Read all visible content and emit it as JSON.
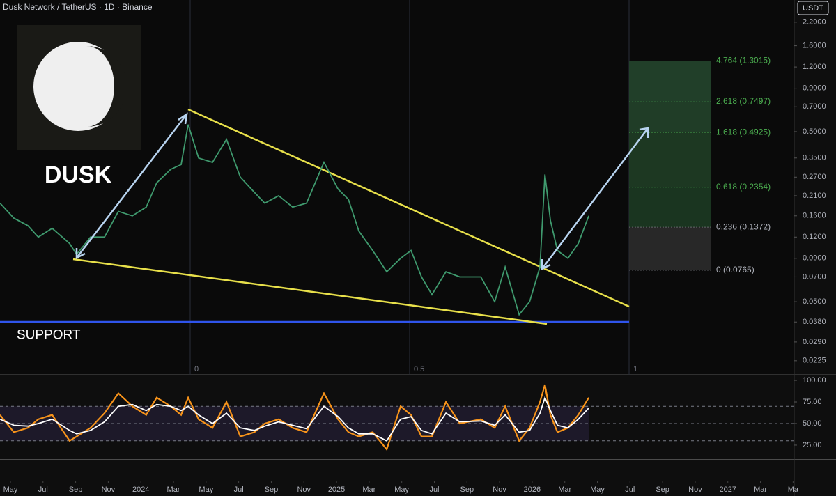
{
  "header": "Dusk Network / TetherUS · 1D · Binance",
  "currency": "USDT",
  "logo_text": "DUSK",
  "chart_data": [
    {
      "type": "line",
      "log_scale": true,
      "color": "#3f9a6e",
      "x": [
        -0.64,
        0.21,
        1.07,
        1.71,
        2.56,
        3.63,
        4.06,
        4.91,
        5.77,
        6.62,
        7.48,
        8.33,
        8.97,
        9.83,
        10.47,
        10.9,
        11.54,
        12.39,
        13.25,
        14.1,
        14.96,
        15.6,
        16.45,
        17.31,
        18.16,
        19.23,
        20.09,
        20.73,
        21.37,
        22.22,
        23.08,
        23.93,
        24.57,
        25.21,
        25.85,
        26.71,
        27.56,
        28.85,
        29.7,
        30.34,
        31.2,
        31.84,
        32.48,
        32.78,
        33.12,
        33.55,
        34.19,
        34.83,
        35.47
      ],
      "values": [
        0.19,
        0.155,
        0.14,
        0.12,
        0.135,
        0.11,
        0.095,
        0.12,
        0.12,
        0.17,
        0.16,
        0.18,
        0.25,
        0.3,
        0.32,
        0.55,
        0.35,
        0.33,
        0.45,
        0.27,
        0.22,
        0.19,
        0.21,
        0.18,
        0.19,
        0.33,
        0.23,
        0.2,
        0.13,
        0.1,
        0.075,
        0.09,
        0.1,
        0.07,
        0.055,
        0.075,
        0.07,
        0.07,
        0.05,
        0.08,
        0.042,
        0.05,
        0.08,
        0.28,
        0.15,
        0.1,
        0.09,
        0.11,
        0.16
      ],
      "xlim": [
        -0.64,
        48.07
      ],
      "xticks": [
        {
          "value": 0,
          "label": "May"
        },
        {
          "value": 2,
          "label": "Jul"
        },
        {
          "value": 4,
          "label": "Sep"
        },
        {
          "value": 6,
          "label": "Nov"
        },
        {
          "value": 8,
          "label": "2024"
        },
        {
          "value": 10,
          "label": "Mar"
        },
        {
          "value": 12,
          "label": "May"
        },
        {
          "value": 14,
          "label": "Jul"
        },
        {
          "value": 16,
          "label": "Sep"
        },
        {
          "value": 18,
          "label": "Nov"
        },
        {
          "value": 20,
          "label": "2025"
        },
        {
          "value": 22,
          "label": "Mar"
        },
        {
          "value": 24,
          "label": "May"
        },
        {
          "value": 26,
          "label": "Jul"
        },
        {
          "value": 28,
          "label": "Sep"
        },
        {
          "value": 30,
          "label": "Nov"
        },
        {
          "value": 32,
          "label": "2026"
        },
        {
          "value": 34,
          "label": "Mar"
        },
        {
          "value": 36,
          "label": "May"
        },
        {
          "value": 38,
          "label": "Jul"
        },
        {
          "value": 40,
          "label": "Sep"
        },
        {
          "value": 42,
          "label": "Nov"
        },
        {
          "value": 44,
          "label": "2027"
        },
        {
          "value": 46,
          "label": "Mar"
        },
        {
          "value": 48,
          "label": "Ma"
        }
      ],
      "ylim": [
        0.0186,
        2.97
      ],
      "yticks": [
        {
          "value": 2.2,
          "label": "2.2000"
        },
        {
          "value": 1.6,
          "label": "1.6000"
        },
        {
          "value": 1.2,
          "label": "1.2000"
        },
        {
          "value": 0.9,
          "label": "0.9000"
        },
        {
          "value": 0.7,
          "label": "0.7000"
        },
        {
          "value": 0.5,
          "label": "0.5000"
        },
        {
          "value": 0.35,
          "label": "0.3500"
        },
        {
          "value": 0.27,
          "label": "0.2700"
        },
        {
          "value": 0.21,
          "label": "0.2100"
        },
        {
          "value": 0.16,
          "label": "0.1600"
        },
        {
          "value": 0.12,
          "label": "0.1200"
        },
        {
          "value": 0.09,
          "label": "0.0900"
        },
        {
          "value": 0.07,
          "label": "0.0700"
        },
        {
          "value": 0.05,
          "label": "0.0500"
        },
        {
          "value": 0.038,
          "label": "0.0380"
        },
        {
          "value": 0.029,
          "label": "0.0290"
        },
        {
          "value": 0.0225,
          "label": "0.0225"
        }
      ],
      "support": {
        "value": 0.038,
        "label": "SUPPORT",
        "color": "#2f54eb"
      },
      "fib_levels": [
        {
          "value": 0.0765,
          "label": "0 (0.0765)",
          "color": "#b2b5be"
        },
        {
          "value": 0.1372,
          "label": "0.236 (0.1372)",
          "color": "#b2b5be"
        },
        {
          "value": 0.2354,
          "label": "0.618 (0.2354)",
          "color": "#4caf50"
        },
        {
          "value": 0.4925,
          "label": "1.618 (0.4925)",
          "color": "#4caf50"
        },
        {
          "value": 0.7497,
          "label": "2.618 (0.7497)",
          "color": "#4caf50"
        },
        {
          "value": 1.3015,
          "label": "4.764 (1.3015)",
          "color": "#4caf50"
        }
      ],
      "time_fib_levels": [
        0,
        0.5,
        1
      ]
    },
    {
      "type": "line",
      "xlim": [
        -0.64,
        48.07
      ],
      "x": [
        -0.64,
        0.21,
        1.07,
        1.71,
        2.56,
        3.63,
        4.06,
        4.91,
        5.77,
        6.62,
        7.48,
        8.33,
        8.97,
        9.83,
        10.47,
        10.9,
        11.54,
        12.39,
        13.25,
        14.1,
        14.96,
        15.6,
        16.45,
        17.31,
        18.16,
        19.23,
        20.09,
        20.73,
        21.37,
        22.22,
        23.08,
        23.93,
        24.57,
        25.21,
        25.85,
        26.71,
        27.56,
        28.85,
        29.7,
        30.34,
        31.2,
        31.84,
        32.48,
        32.78,
        33.12,
        33.55,
        34.19,
        34.83,
        35.47
      ],
      "series": [
        {
          "color": "#f7931a",
          "values": [
            60,
            40,
            45,
            55,
            60,
            30,
            35,
            45,
            62,
            85,
            70,
            60,
            80,
            70,
            60,
            80,
            55,
            45,
            75,
            35,
            40,
            50,
            55,
            45,
            40,
            85,
            55,
            40,
            35,
            40,
            20,
            70,
            60,
            35,
            35,
            75,
            50,
            55,
            45,
            70,
            30,
            45,
            75,
            95,
            60,
            40,
            45,
            60,
            80
          ]
        },
        {
          "color": "#ffffff",
          "values": [
            55,
            48,
            47,
            50,
            55,
            42,
            38,
            42,
            52,
            70,
            72,
            65,
            72,
            70,
            65,
            70,
            60,
            50,
            62,
            45,
            42,
            47,
            52,
            48,
            44,
            70,
            58,
            45,
            38,
            38,
            30,
            55,
            58,
            42,
            38,
            62,
            52,
            53,
            48,
            60,
            40,
            42,
            62,
            80,
            65,
            48,
            45,
            55,
            68
          ]
        }
      ],
      "ylim": [
        8,
        106.5
      ],
      "yticks": [
        {
          "value": 100,
          "label": "100.00"
        },
        {
          "value": 75,
          "label": "75.00"
        },
        {
          "value": 50,
          "label": "50.00"
        },
        {
          "value": 25,
          "label": "25.00"
        }
      ],
      "bands": [
        30,
        50,
        70
      ]
    }
  ]
}
